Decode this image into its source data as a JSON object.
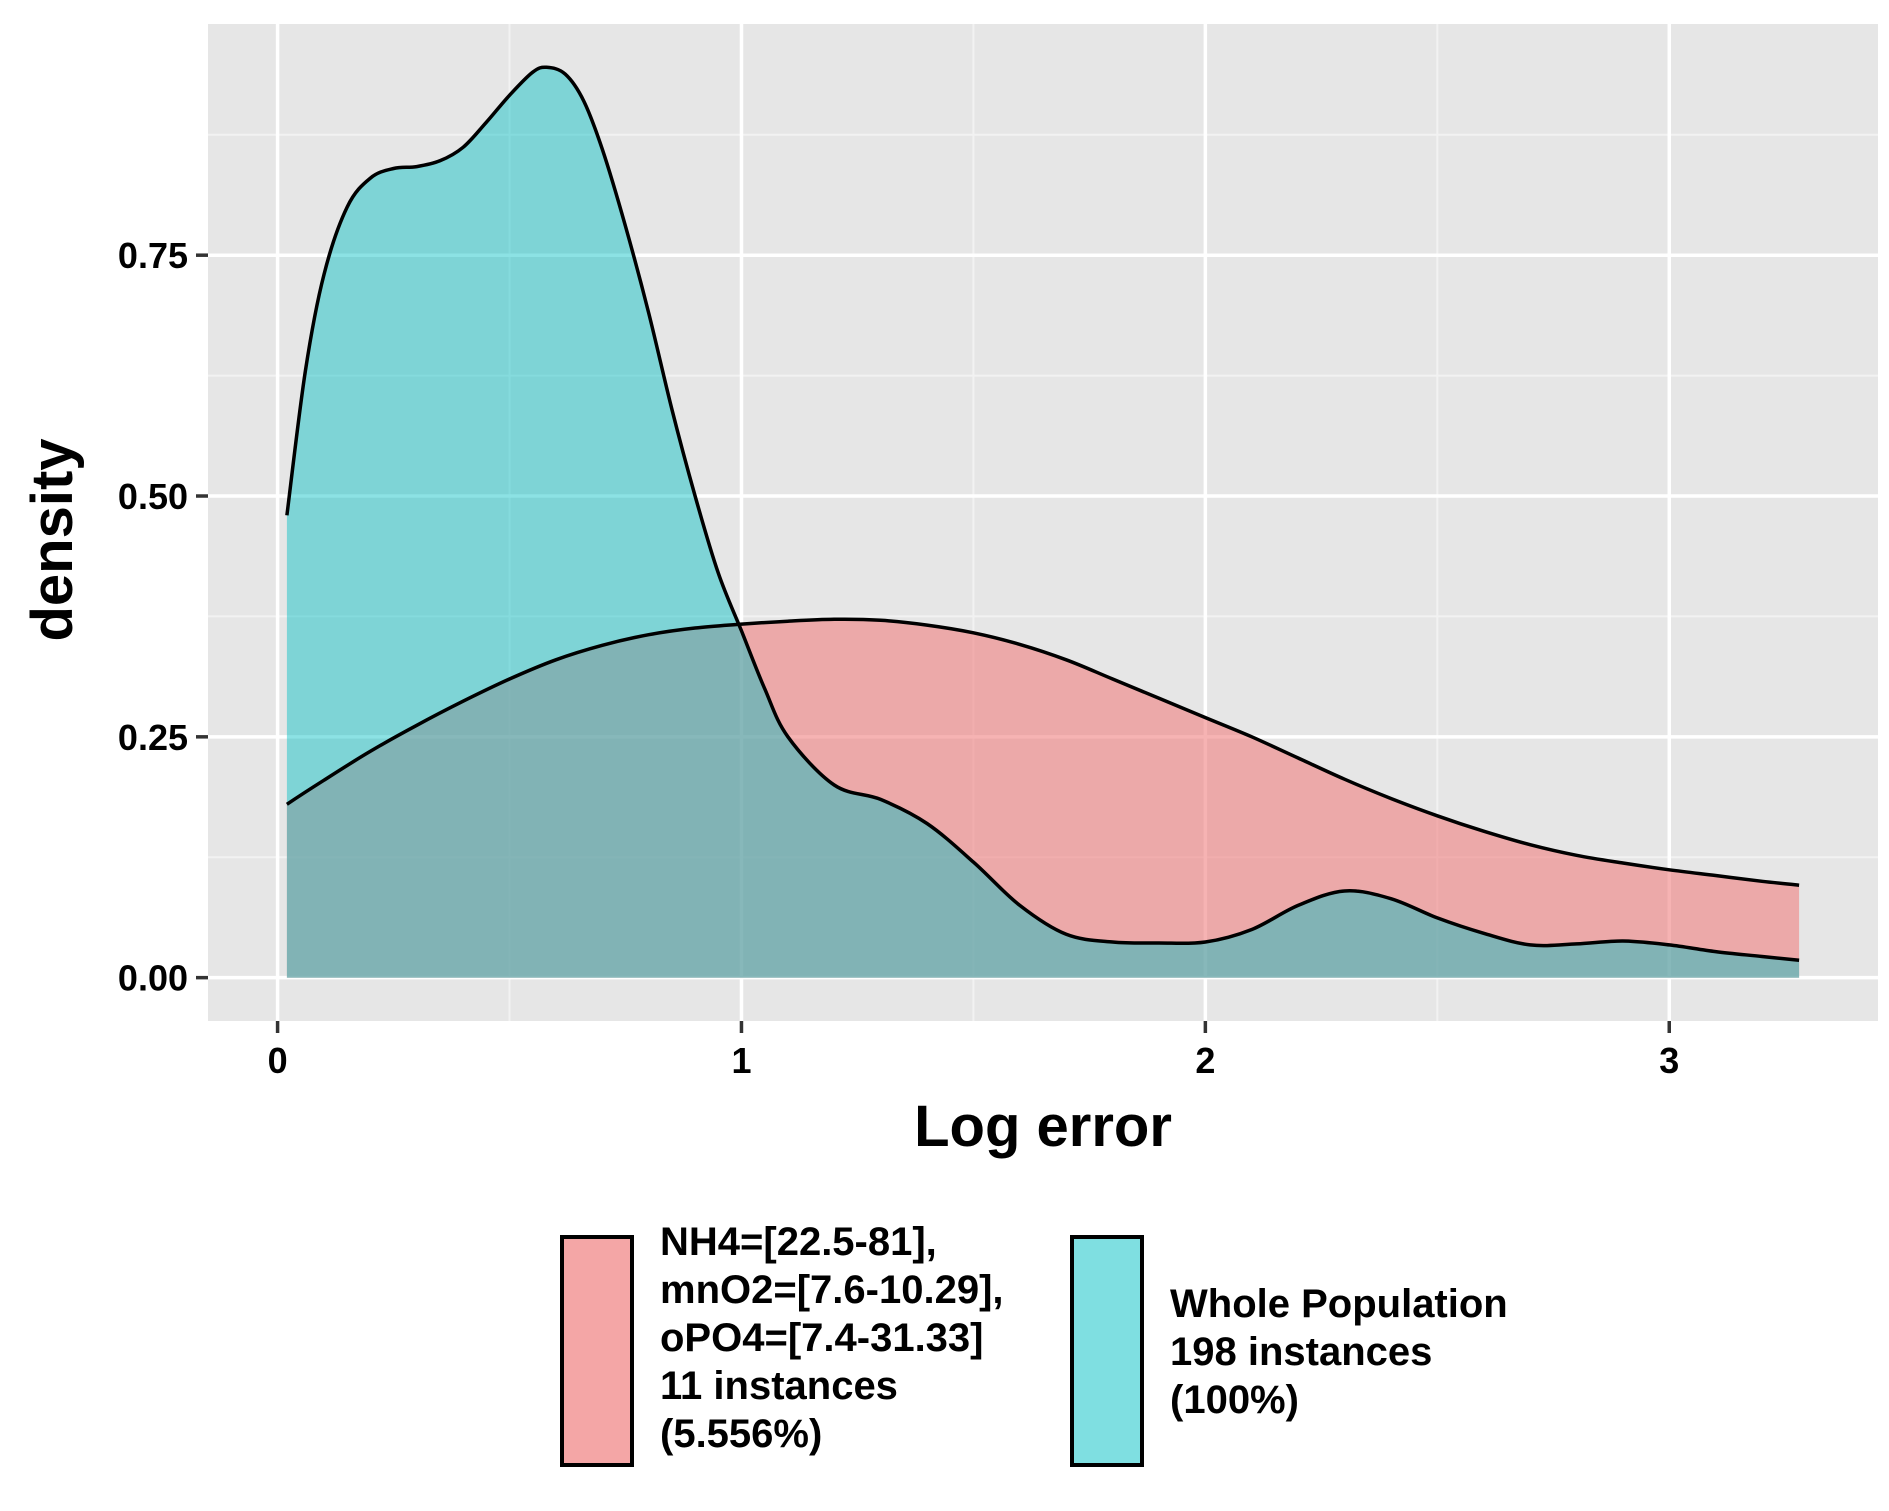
{
  "chart_data": {
    "type": "area",
    "title": "",
    "xlabel": "Log error",
    "ylabel": "density",
    "xlim": [
      -0.15,
      3.45
    ],
    "ylim": [
      -0.045,
      0.99
    ],
    "x_ticks": [
      0,
      1,
      2,
      3
    ],
    "x_tick_labels": [
      "0",
      "1",
      "2",
      "3"
    ],
    "y_ticks": [
      0,
      0.25,
      0.5,
      0.75
    ],
    "y_tick_labels": [
      "0.00",
      "0.25",
      "0.50",
      "0.75"
    ],
    "grid": true,
    "legend_position": "bottom",
    "colors": {
      "panel": "#e6e6e6",
      "subgroup": "#f08080",
      "population": "#00bfc4",
      "outline": "#000000"
    },
    "series": [
      {
        "key": "subgroup",
        "legend_lines": [
          "NH4=[22.5-81],",
          "mnO2=[7.6-10.29],",
          "oPO4=[7.4-31.33]",
          "11 instances",
          "(5.556%)"
        ],
        "color": "#f08080",
        "x": [
          0.02,
          0.1,
          0.2,
          0.3,
          0.4,
          0.5,
          0.6,
          0.7,
          0.8,
          0.9,
          1.0,
          1.1,
          1.2,
          1.3,
          1.4,
          1.5,
          1.6,
          1.7,
          1.8,
          1.9,
          2.0,
          2.1,
          2.2,
          2.3,
          2.4,
          2.5,
          2.6,
          2.7,
          2.8,
          2.9,
          3.0,
          3.1,
          3.2,
          3.28
        ],
        "y": [
          0.18,
          0.205,
          0.235,
          0.262,
          0.287,
          0.31,
          0.33,
          0.345,
          0.356,
          0.363,
          0.367,
          0.37,
          0.372,
          0.371,
          0.366,
          0.358,
          0.346,
          0.33,
          0.31,
          0.29,
          0.27,
          0.25,
          0.228,
          0.206,
          0.186,
          0.168,
          0.152,
          0.138,
          0.127,
          0.119,
          0.112,
          0.106,
          0.1,
          0.096
        ]
      },
      {
        "key": "population",
        "legend_lines": [
          "Whole Population",
          "198 instances",
          "(100%)"
        ],
        "color": "#00bfc4",
        "x": [
          0.02,
          0.06,
          0.1,
          0.15,
          0.2,
          0.25,
          0.3,
          0.35,
          0.4,
          0.45,
          0.5,
          0.55,
          0.58,
          0.62,
          0.66,
          0.7,
          0.75,
          0.8,
          0.85,
          0.9,
          0.95,
          1.0,
          1.05,
          1.1,
          1.2,
          1.3,
          1.4,
          1.5,
          1.6,
          1.7,
          1.8,
          1.9,
          2.0,
          2.1,
          2.2,
          2.3,
          2.4,
          2.5,
          2.6,
          2.7,
          2.8,
          2.9,
          3.0,
          3.1,
          3.2,
          3.28
        ],
        "y": [
          0.48,
          0.63,
          0.73,
          0.8,
          0.83,
          0.84,
          0.842,
          0.848,
          0.862,
          0.888,
          0.916,
          0.94,
          0.945,
          0.938,
          0.91,
          0.86,
          0.78,
          0.69,
          0.59,
          0.5,
          0.42,
          0.36,
          0.3,
          0.25,
          0.2,
          0.185,
          0.16,
          0.12,
          0.075,
          0.045,
          0.037,
          0.036,
          0.037,
          0.05,
          0.075,
          0.09,
          0.082,
          0.062,
          0.046,
          0.034,
          0.035,
          0.038,
          0.034,
          0.027,
          0.022,
          0.018
        ]
      }
    ]
  }
}
